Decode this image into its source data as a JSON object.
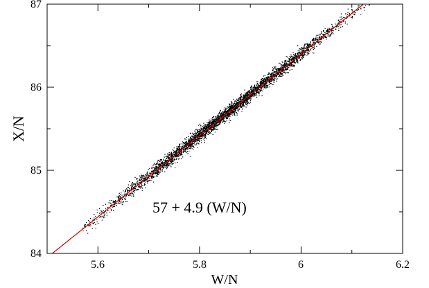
{
  "chart_data": {
    "type": "scatter",
    "title": "",
    "xlabel": "W/N",
    "ylabel": "X/N",
    "xlim": [
      5.5,
      6.2
    ],
    "ylim": [
      84,
      87
    ],
    "grid": false,
    "x_ticks": [
      5.6,
      5.8,
      6.0,
      6.2
    ],
    "x_tick_labels": [
      "5.6",
      "5.8",
      "6",
      "6.2"
    ],
    "y_ticks": [
      84,
      85,
      86,
      87
    ],
    "y_tick_labels": [
      "84",
      "85",
      "86",
      "87"
    ],
    "annotation": "57 + 4.9 (W/N)",
    "scatter": {
      "color": "#000000",
      "x_range": [
        5.6,
        6.1
      ],
      "point_count_estimate": 6000,
      "relation": "X/N = 57 + 4.9 (W/N)",
      "spread_y": 0.04
    },
    "fit": {
      "name": "57 + 4.9 (W/N)",
      "color": "#cc0000",
      "intercept": 57,
      "slope": 4.9,
      "x": [
        5.5,
        6.2
      ],
      "y": [
        83.95,
        87.38
      ]
    }
  }
}
